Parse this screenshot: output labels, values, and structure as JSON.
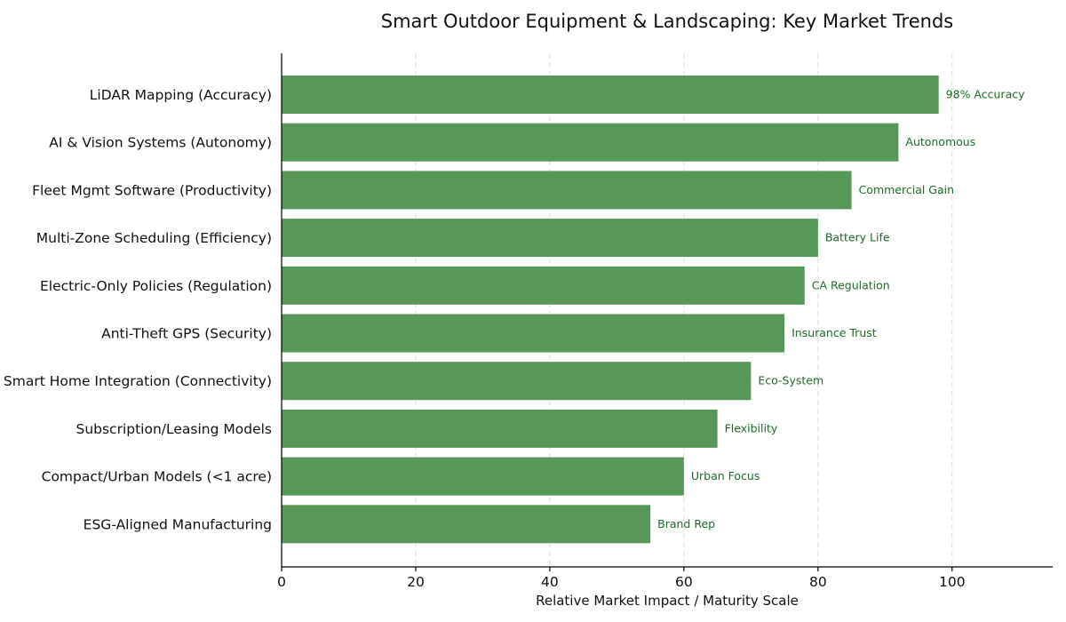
{
  "chart_data": {
    "type": "bar",
    "orientation": "horizontal",
    "title": "Smart Outdoor Equipment & Landscaping: Key Market Trends",
    "xlabel": "Relative Market Impact / Maturity Scale",
    "ylabel": "",
    "xlim": [
      0,
      115
    ],
    "xticks": [
      0,
      20,
      40,
      60,
      80,
      100
    ],
    "grid": "x dashed",
    "bar_color": "#57975a",
    "label_color": "#1e6b28",
    "categories": [
      "LiDAR Mapping (Accuracy)",
      "AI & Vision Systems (Autonomy)",
      "Fleet Mgmt Software (Productivity)",
      "Multi-Zone Scheduling (Efficiency)",
      "Electric-Only Policies (Regulation)",
      "Anti-Theft GPS (Security)",
      "Smart Home Integration (Connectivity)",
      "Subscription/Leasing Models",
      "Compact/Urban Models (<1 acre)",
      "ESG-Aligned Manufacturing"
    ],
    "values": [
      98,
      92,
      85,
      80,
      78,
      75,
      70,
      65,
      60,
      55
    ],
    "data_labels": [
      "98% Accuracy",
      "Autonomous",
      "Commercial Gain",
      "Battery Life",
      "CA Regulation",
      "Insurance Trust",
      "Eco-System",
      "Flexibility",
      "Urban Focus",
      "Brand Rep"
    ]
  }
}
